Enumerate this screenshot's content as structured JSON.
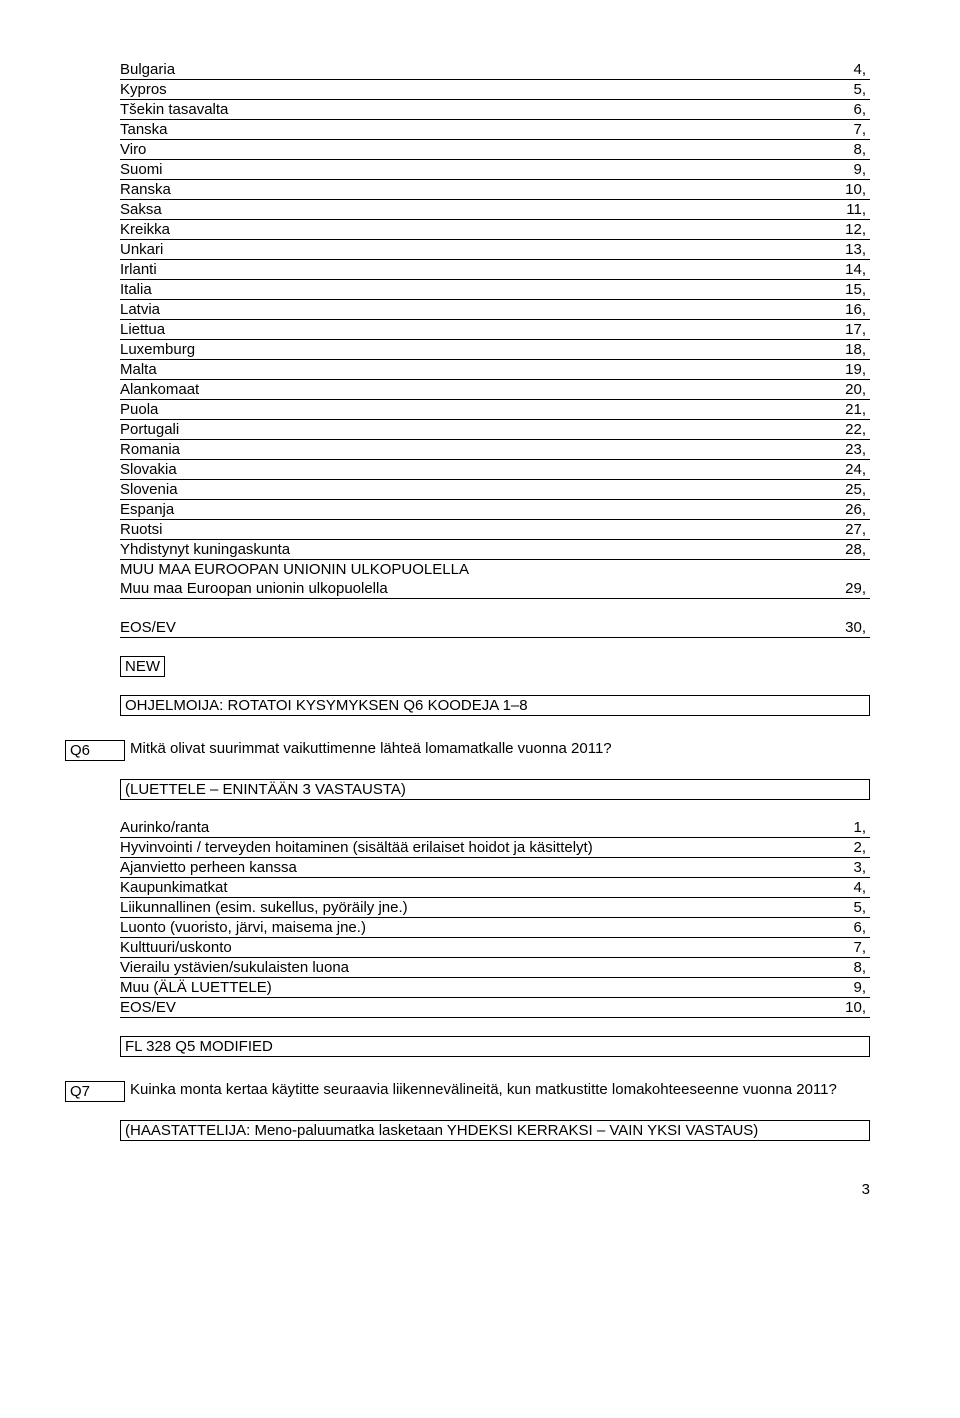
{
  "countries": [
    {
      "name": "Bulgaria",
      "code": "4,"
    },
    {
      "name": "Kypros",
      "code": "5,"
    },
    {
      "name": "Tšekin tasavalta",
      "code": "6,"
    },
    {
      "name": "Tanska",
      "code": "7,"
    },
    {
      "name": "Viro",
      "code": "8,"
    },
    {
      "name": "Suomi",
      "code": "9,"
    },
    {
      "name": "Ranska",
      "code": "10,"
    },
    {
      "name": "Saksa",
      "code": "11,"
    },
    {
      "name": "Kreikka",
      "code": "12,"
    },
    {
      "name": "Unkari",
      "code": "13,"
    },
    {
      "name": "Irlanti",
      "code": "14,"
    },
    {
      "name": "Italia",
      "code": "15,"
    },
    {
      "name": "Latvia",
      "code": "16,"
    },
    {
      "name": "Liettua",
      "code": "17,"
    },
    {
      "name": "Luxemburg",
      "code": "18,"
    },
    {
      "name": "Malta",
      "code": "19,"
    },
    {
      "name": "Alankomaat",
      "code": "20,"
    },
    {
      "name": "Puola",
      "code": "21,"
    },
    {
      "name": "Portugali",
      "code": "22,"
    },
    {
      "name": "Romania",
      "code": "23,"
    },
    {
      "name": "Slovakia",
      "code": "24,"
    },
    {
      "name": "Slovenia",
      "code": "25,"
    },
    {
      "name": "Espanja",
      "code": "26,"
    },
    {
      "name": "Ruotsi",
      "code": "27,"
    },
    {
      "name": "Yhdistynyt kuningaskunta",
      "code": "28,"
    }
  ],
  "muu_header": "MUU MAA EUROOPAN UNIONIN ULKOPUOLELLA",
  "muu_row": {
    "name": "Muu maa Euroopan unionin ulkopuolella",
    "code": "29,"
  },
  "eos_row": {
    "name": "EOS/EV",
    "code": "30,"
  },
  "new_label": "NEW",
  "ohjelmoija": "OHJELMOIJA: ROTATOI KYSYMYKSEN Q6 KOODEJA 1–8",
  "q6": {
    "id": "Q6",
    "text": "Mitkä olivat suurimmat vaikuttimenne lähteä lomamatkalle vuonna 2011?",
    "instruction": "(LUETTELE – ENINTÄÄN 3 VASTAUSTA)",
    "options": [
      {
        "label": "Aurinko/ranta",
        "code": "1,"
      },
      {
        "label": "Hyvinvointi / terveyden hoitaminen (sisältää erilaiset hoidot ja käsittelyt)",
        "code": "2,"
      },
      {
        "label": "Ajanvietto perheen kanssa",
        "code": "3,"
      },
      {
        "label": "Kaupunkimatkat",
        "code": "4,"
      },
      {
        "label": "Liikunnallinen (esim. sukellus, pyöräily jne.)",
        "code": "5,"
      },
      {
        "label": "Luonto (vuoristo, järvi, maisema jne.)",
        "code": "6,"
      },
      {
        "label": "Kulttuuri/uskonto",
        "code": "7,"
      },
      {
        "label": "Vierailu ystävien/sukulaisten luona",
        "code": "8,"
      },
      {
        "label": "Muu (ÄLÄ LUETTELE)",
        "code": "9,"
      },
      {
        "label": "EOS/EV",
        "code": "10,"
      }
    ],
    "footer": "FL 328 Q5 MODIFIED"
  },
  "q7": {
    "id": "Q7",
    "text": "Kuinka monta kertaa käytitte seuraavia liikennevälineitä, kun matkustitte lomakohteeseenne vuonna 2011?",
    "instruction": "(HAASTATTELIJA: Meno-paluumatka lasketaan YHDEKSI KERRAKSI – VAIN YKSI VASTAUS)"
  },
  "page_number": "3"
}
